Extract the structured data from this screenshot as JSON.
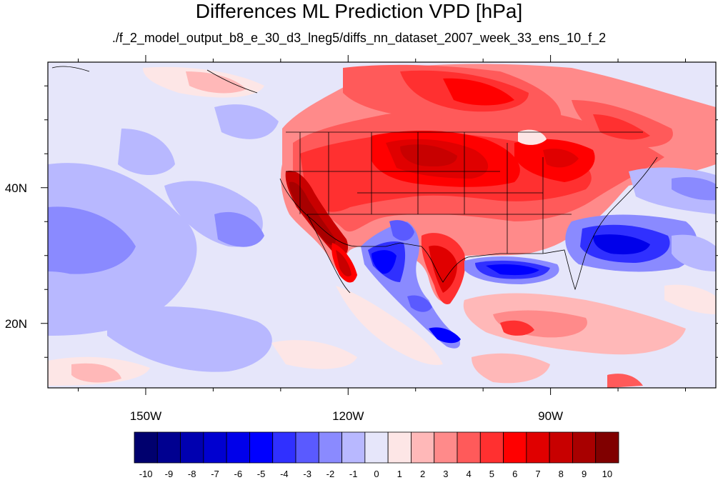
{
  "title": "Differences ML Prediction VPD [hPa]",
  "subtitle": "./f_2_model_output_b8_e_30_d3_lneg5/diffs_nn_dataset_2007_week_33_ens_10_f_2",
  "map": {
    "lon_range": [
      -164.5,
      -65.5
    ],
    "lat_range": [
      10.5,
      58.5
    ],
    "lon_ticks": [
      {
        "value": -150,
        "label": "150W"
      },
      {
        "value": -120,
        "label": "120W"
      },
      {
        "value": -90,
        "label": "90W"
      }
    ],
    "lat_ticks": [
      {
        "value": 40,
        "label": "40N"
      },
      {
        "value": 20,
        "label": "20N"
      }
    ]
  },
  "colorbar": {
    "labels": [
      "-10",
      "-9",
      "-8",
      "-7",
      "-6",
      "-5",
      "-4",
      "-3",
      "-2",
      "-1",
      "0",
      "1",
      "2",
      "3",
      "4",
      "5",
      "6",
      "7",
      "8",
      "9",
      "10"
    ],
    "colors": [
      "#00006e",
      "#000090",
      "#0000b0",
      "#0000d0",
      "#0000ea",
      "#0000ff",
      "#3030ff",
      "#5a5aff",
      "#8a8aff",
      "#b8b8ff",
      "#e6e6fa",
      "#fde6e6",
      "#ffb8b8",
      "#ff8a8a",
      "#ff5a5a",
      "#ff3030",
      "#ff0000",
      "#e00000",
      "#c80000",
      "#a80000",
      "#800000"
    ]
  }
}
